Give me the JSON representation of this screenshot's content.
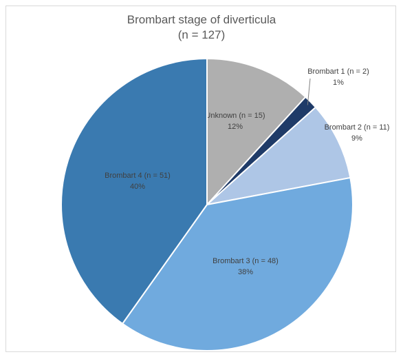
{
  "chart_data": {
    "type": "pie",
    "title": "Brombart stage of diverticula",
    "subtitle": "(n = 127)",
    "start": "12 o'clock",
    "direction": "clockwise",
    "legend": "none",
    "slices": [
      {
        "label": "Unknown (n = 15)",
        "value": 15,
        "percent": "12%",
        "color": "#afafaf",
        "label_color": "#404040"
      },
      {
        "label": "Brombart 1 (n = 2)",
        "value": 2,
        "percent": "1%",
        "color": "#1f3b68",
        "label_color": "#404040"
      },
      {
        "label": "Brombart 2 (n = 11)",
        "value": 11,
        "percent": "9%",
        "color": "#aec6e6",
        "label_color": "#404040"
      },
      {
        "label": "Brombart 3 (n = 48)",
        "value": 48,
        "percent": "38%",
        "color": "#70aade",
        "label_color": "#404040"
      },
      {
        "label": "Brombart 4 (n = 51)",
        "value": 51,
        "percent": "40%",
        "color": "#3a7ab0",
        "label_color": "#404040"
      }
    ]
  }
}
